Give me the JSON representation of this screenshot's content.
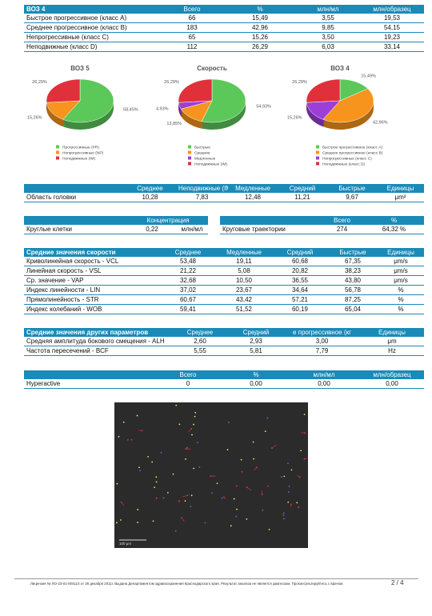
{
  "who4_table": {
    "header": [
      "ВОЗ 4",
      "Всего",
      "%",
      "млн/мл",
      "млн/образец"
    ],
    "rows": [
      [
        "Быстрое прогрессивное (класс A)",
        "66",
        "15,49",
        "3,55",
        "19,53"
      ],
      [
        "Среднее прогрессивное (класс B)",
        "183",
        "42,96",
        "9,85",
        "54,15"
      ],
      [
        "Непрогрессивные (класс C)",
        "65",
        "15,26",
        "3,50",
        "19,23"
      ],
      [
        "Неподвижные (класс D)",
        "112",
        "26,29",
        "6,03",
        "33,14"
      ]
    ]
  },
  "charts": [
    {
      "type": "pie",
      "title": "ВОЗ 5",
      "values": [
        58.45,
        15.26,
        26.29
      ],
      "value_labels": [
        "58,45%",
        "15,26%",
        "26,29%"
      ],
      "legend": [
        "Прогрессивные (PR)",
        "Непрогрессивные (NP)",
        "Неподвижные (IM)"
      ],
      "colors": [
        "#5cc85a",
        "#f7941d",
        "#e0303a"
      ]
    },
    {
      "type": "pie",
      "title": "Скорость",
      "values": [
        54.93,
        13.85,
        4.93,
        26.29
      ],
      "value_labels": [
        "54,93%",
        "13,85%",
        "4,93%",
        "26,29%"
      ],
      "legend": [
        "Быстрые",
        "Средние",
        "Медленные",
        "Неподвижные (IM)"
      ],
      "colors": [
        "#5cc85a",
        "#f7941d",
        "#9b3fd6",
        "#e0303a"
      ]
    },
    {
      "type": "pie",
      "title": "ВОЗ 4",
      "values": [
        15.49,
        42.96,
        15.26,
        26.29
      ],
      "value_labels": [
        "15,49%",
        "42,96%",
        "15,26%",
        "26,29%"
      ],
      "legend": [
        "Быстрое прогрессивное (класс A)",
        "Среднее прогрессивное (класс B)",
        "Непрогрессивные (класс C)",
        "Неподвижные (класс D)"
      ],
      "colors": [
        "#5cc85a",
        "#f7941d",
        "#9b3fd6",
        "#e0303a"
      ]
    }
  ],
  "head_area_table": {
    "header": [
      "Среднее",
      "Неподвижные (IM",
      "Медленные",
      "Средний",
      "Быстрые",
      "Единицы"
    ],
    "rows": [
      [
        "Область головки",
        "10,28",
        "7,83",
        "12,48",
        "11,21",
        "9,67",
        "μm²"
      ]
    ]
  },
  "concentration_table": {
    "header": [
      "Концентрация"
    ],
    "rows": [
      [
        "Круглые клетки",
        "0,22",
        "млн/мл"
      ]
    ]
  },
  "circular_table": {
    "header": [
      "Всего",
      "%"
    ],
    "rows": [
      [
        "Круговые траектории",
        "274",
        "64,32 %"
      ]
    ]
  },
  "velocity_table": {
    "header": [
      "Средние значения скорости",
      "Среднее",
      "Медленные",
      "Средний",
      "Быстрые",
      "Единицы"
    ],
    "rows": [
      [
        "Криволинейная скорость - VCL",
        "53,48",
        "19,11",
        "60,68",
        "67,35",
        "μm/s"
      ],
      [
        "Линейная скорость - VSL",
        "21,22",
        "5,08",
        "20,82",
        "38,23",
        "μm/s"
      ],
      [
        "Ср. значение - VAP",
        "32,68",
        "10,50",
        "36,55",
        "43,80",
        "μm/s"
      ],
      [
        "Индекс линейности - LIN",
        "37,02",
        "23,67",
        "34,64",
        "56,78",
        "%"
      ],
      [
        "Прямолинейность - STR",
        "60,67",
        "43,42",
        "57,21",
        "87,25",
        "%"
      ],
      [
        "Индекс колебаний - WOB",
        "59,41",
        "51,52",
        "60,19",
        "65,04",
        "%"
      ]
    ]
  },
  "other_params_table": {
    "header": [
      "Средние значения других параметров",
      "Среднее",
      "Средний",
      "е прогрессивное (кг",
      "Единицы"
    ],
    "rows": [
      [
        "Средняя амплитуда бокового смещения - ALH",
        "2,60",
        "2,93",
        "3,00",
        "μm"
      ],
      [
        "Частота пересечений - BCF",
        "5,55",
        "5,81",
        "7,79",
        "Hz"
      ]
    ]
  },
  "hyperactive_table": {
    "header": [
      "Всего",
      "%",
      "млн/мл",
      "млн/образец"
    ],
    "rows": [
      [
        "Hyperactive",
        "0",
        "0,00",
        "0,00",
        "0,00"
      ]
    ]
  },
  "image": {
    "scale_label": "100 μm"
  },
  "footer": {
    "license": "Лицензия № ЛО-23-01-004110 от 28 декабря 2011г. Выдана Департаментом здравоохранения Краснодарского края. Результат анализа не является диагнозом. Проконсультируйтесь с врачом.",
    "page": "2 / 4"
  }
}
